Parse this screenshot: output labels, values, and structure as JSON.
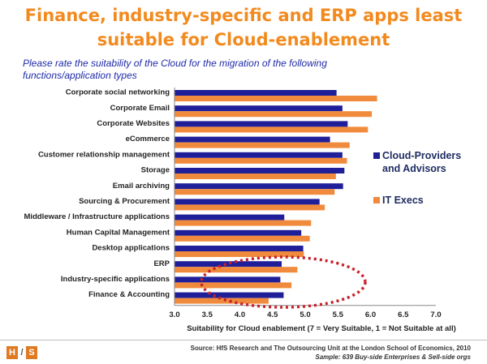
{
  "title": "Finance, industry-specific and ERP apps least suitable for Cloud-enablement",
  "subtitle": "Please rate the suitability of the Cloud for the migration of  the following functions/application types",
  "chart_data": {
    "type": "bar",
    "orientation": "horizontal",
    "categories": [
      "Corporate social networking",
      "Corporate Email",
      "Corporate Websites",
      "eCommerce",
      "Customer relationship management",
      "Storage",
      "Email archiving",
      "Sourcing & Procurement",
      "Middleware / Infrastructure applications",
      "Human Capital Management",
      "Desktop applications",
      "ERP",
      "Industry-specific applications",
      "Finance & Accounting"
    ],
    "series": [
      {
        "name": "Cloud-Providers and Advisors",
        "color": "#1f1f9a",
        "values": [
          5.48,
          5.57,
          5.65,
          5.38,
          5.57,
          5.6,
          5.58,
          5.22,
          4.68,
          4.94,
          4.97,
          4.64,
          4.62,
          4.67
        ]
      },
      {
        "name": "IT Execs",
        "color": "#f08a3c",
        "values": [
          6.1,
          6.02,
          5.96,
          5.68,
          5.64,
          5.47,
          5.45,
          5.3,
          5.09,
          5.07,
          4.98,
          4.88,
          4.79,
          4.44
        ]
      }
    ],
    "xlim": [
      3.0,
      7.0
    ],
    "xticks": [
      "3.0",
      "3.5",
      "4.0",
      "4.5",
      "5.0",
      "5.5",
      "6.0",
      "6.5",
      "7.0"
    ],
    "xlabel": "Suitability for Cloud enablement (7 = Very Suitable, 1 = Not Suitable at all)",
    "ylabel": "",
    "grid": false,
    "legend_position": "right",
    "annotation": "red dotted ellipse highlighting ERP, Industry-specific applications and Finance & Accounting"
  },
  "legend": {
    "cloud_line1": "Cloud-Providers",
    "cloud_line2": "and Advisors",
    "it": "IT Execs"
  },
  "footer": {
    "logo_left": "H",
    "logo_mid": "/",
    "logo_right": "S",
    "source": "Source:  HfS Research and  The Outsourcing Unit at the London School of Economics, 2010",
    "sample": "Sample:  639 Buy-side Enterprises & Sell-side orgs"
  }
}
